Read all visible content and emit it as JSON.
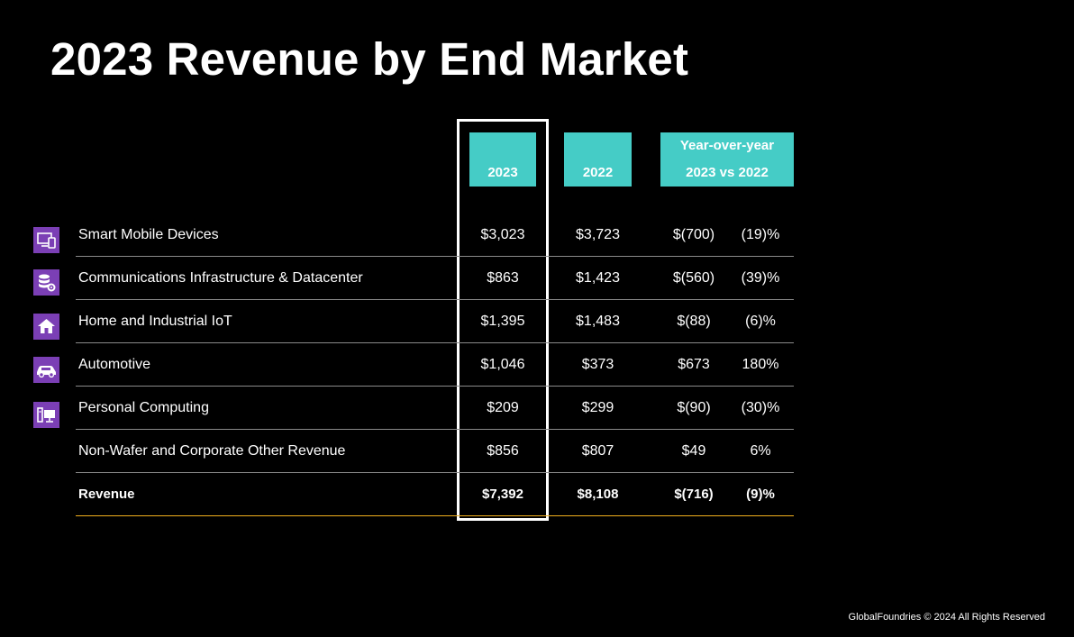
{
  "title": "2023 Revenue by End Market",
  "headers": {
    "col_2023": "2023",
    "col_2022": "2022",
    "yoy_line1": "Year-over-year",
    "yoy_line2": "2023 vs 2022"
  },
  "rows": [
    {
      "label": "Smart Mobile Devices",
      "v2023": "$3,023",
      "v2022": "$3,723",
      "change": "$(700)",
      "pct": "(19)%",
      "icon": "mobile-devices-icon"
    },
    {
      "label": "Communications Infrastructure & Datacenter",
      "v2023": "$863",
      "v2022": "$1,423",
      "change": "$(560)",
      "pct": "(39)%",
      "icon": "database-gear-icon"
    },
    {
      "label": "Home and Industrial IoT",
      "v2023": "$1,395",
      "v2022": "$1,483",
      "change": "$(88)",
      "pct": "(6)%",
      "icon": "home-icon"
    },
    {
      "label": "Automotive",
      "v2023": "$1,046",
      "v2022": "$373",
      "change": "$673",
      "pct": "180%",
      "icon": "car-icon"
    },
    {
      "label": "Personal Computing",
      "v2023": "$209",
      "v2022": "$299",
      "change": "$(90)",
      "pct": "(30)%",
      "icon": "desktop-computer-icon"
    },
    {
      "label": "Non-Wafer and Corporate Other Revenue",
      "v2023": "$856",
      "v2022": "$807",
      "change": "$49",
      "pct": "6%",
      "icon": ""
    },
    {
      "label": "Revenue",
      "v2023": "$7,392",
      "v2022": "$8,108",
      "change": "$(716)",
      "pct": "(9)%",
      "icon": ""
    }
  ],
  "footer": "GlobalFoundries © 2024 All Rights Reserved",
  "colors": {
    "header_teal": "#45ccc6",
    "icon_purple": "#7b3fb5",
    "total_rule": "#f2b01e"
  },
  "chart_data": {
    "type": "table",
    "title": "2023 Revenue by End Market",
    "columns": [
      "",
      "2023",
      "2022",
      "Year-over-year 2023 vs 2022",
      ""
    ],
    "rows": [
      [
        "Smart Mobile Devices",
        3023,
        3723,
        -700,
        -19
      ],
      [
        "Communications Infrastructure & Datacenter",
        863,
        1423,
        -560,
        -39
      ],
      [
        "Home and Industrial IoT",
        1395,
        1483,
        -88,
        -6
      ],
      [
        "Automotive",
        1046,
        373,
        673,
        180
      ],
      [
        "Personal Computing",
        209,
        299,
        -90,
        -30
      ],
      [
        "Non-Wafer and Corporate Other Revenue",
        856,
        807,
        49,
        6
      ],
      [
        "Revenue",
        7392,
        8108,
        -716,
        -9
      ]
    ],
    "highlighted_column": "2023"
  }
}
